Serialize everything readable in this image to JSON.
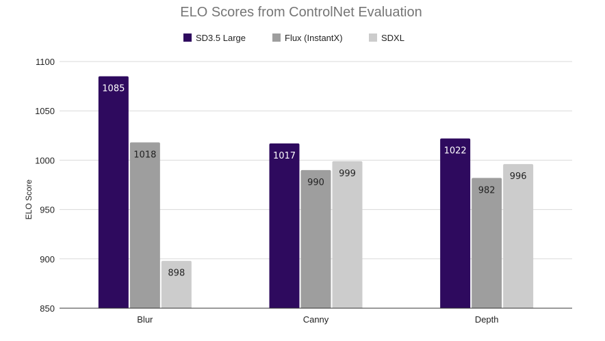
{
  "chart_data": {
    "type": "bar",
    "title": "ELO Scores from ControlNet Evaluation",
    "xlabel": "",
    "ylabel": "ELO Score",
    "categories": [
      "Blur",
      "Canny",
      "Depth"
    ],
    "series": [
      {
        "name": "SD3.5 Large",
        "values": [
          1085,
          1017,
          1022
        ],
        "color": "#2e0a5e",
        "label_color": "#ffffff"
      },
      {
        "name": "Flux (InstantX)",
        "values": [
          1018,
          990,
          982
        ],
        "color": "#9e9e9e",
        "label_color": "#222222"
      },
      {
        "name": "SDXL",
        "values": [
          898,
          999,
          996
        ],
        "color": "#cccccc",
        "label_color": "#222222"
      }
    ],
    "ylim": [
      850,
      1100
    ],
    "yticks": [
      "850",
      "900",
      "950",
      "1000",
      "1050",
      "1100"
    ],
    "grid": true,
    "legend_position": "top"
  }
}
